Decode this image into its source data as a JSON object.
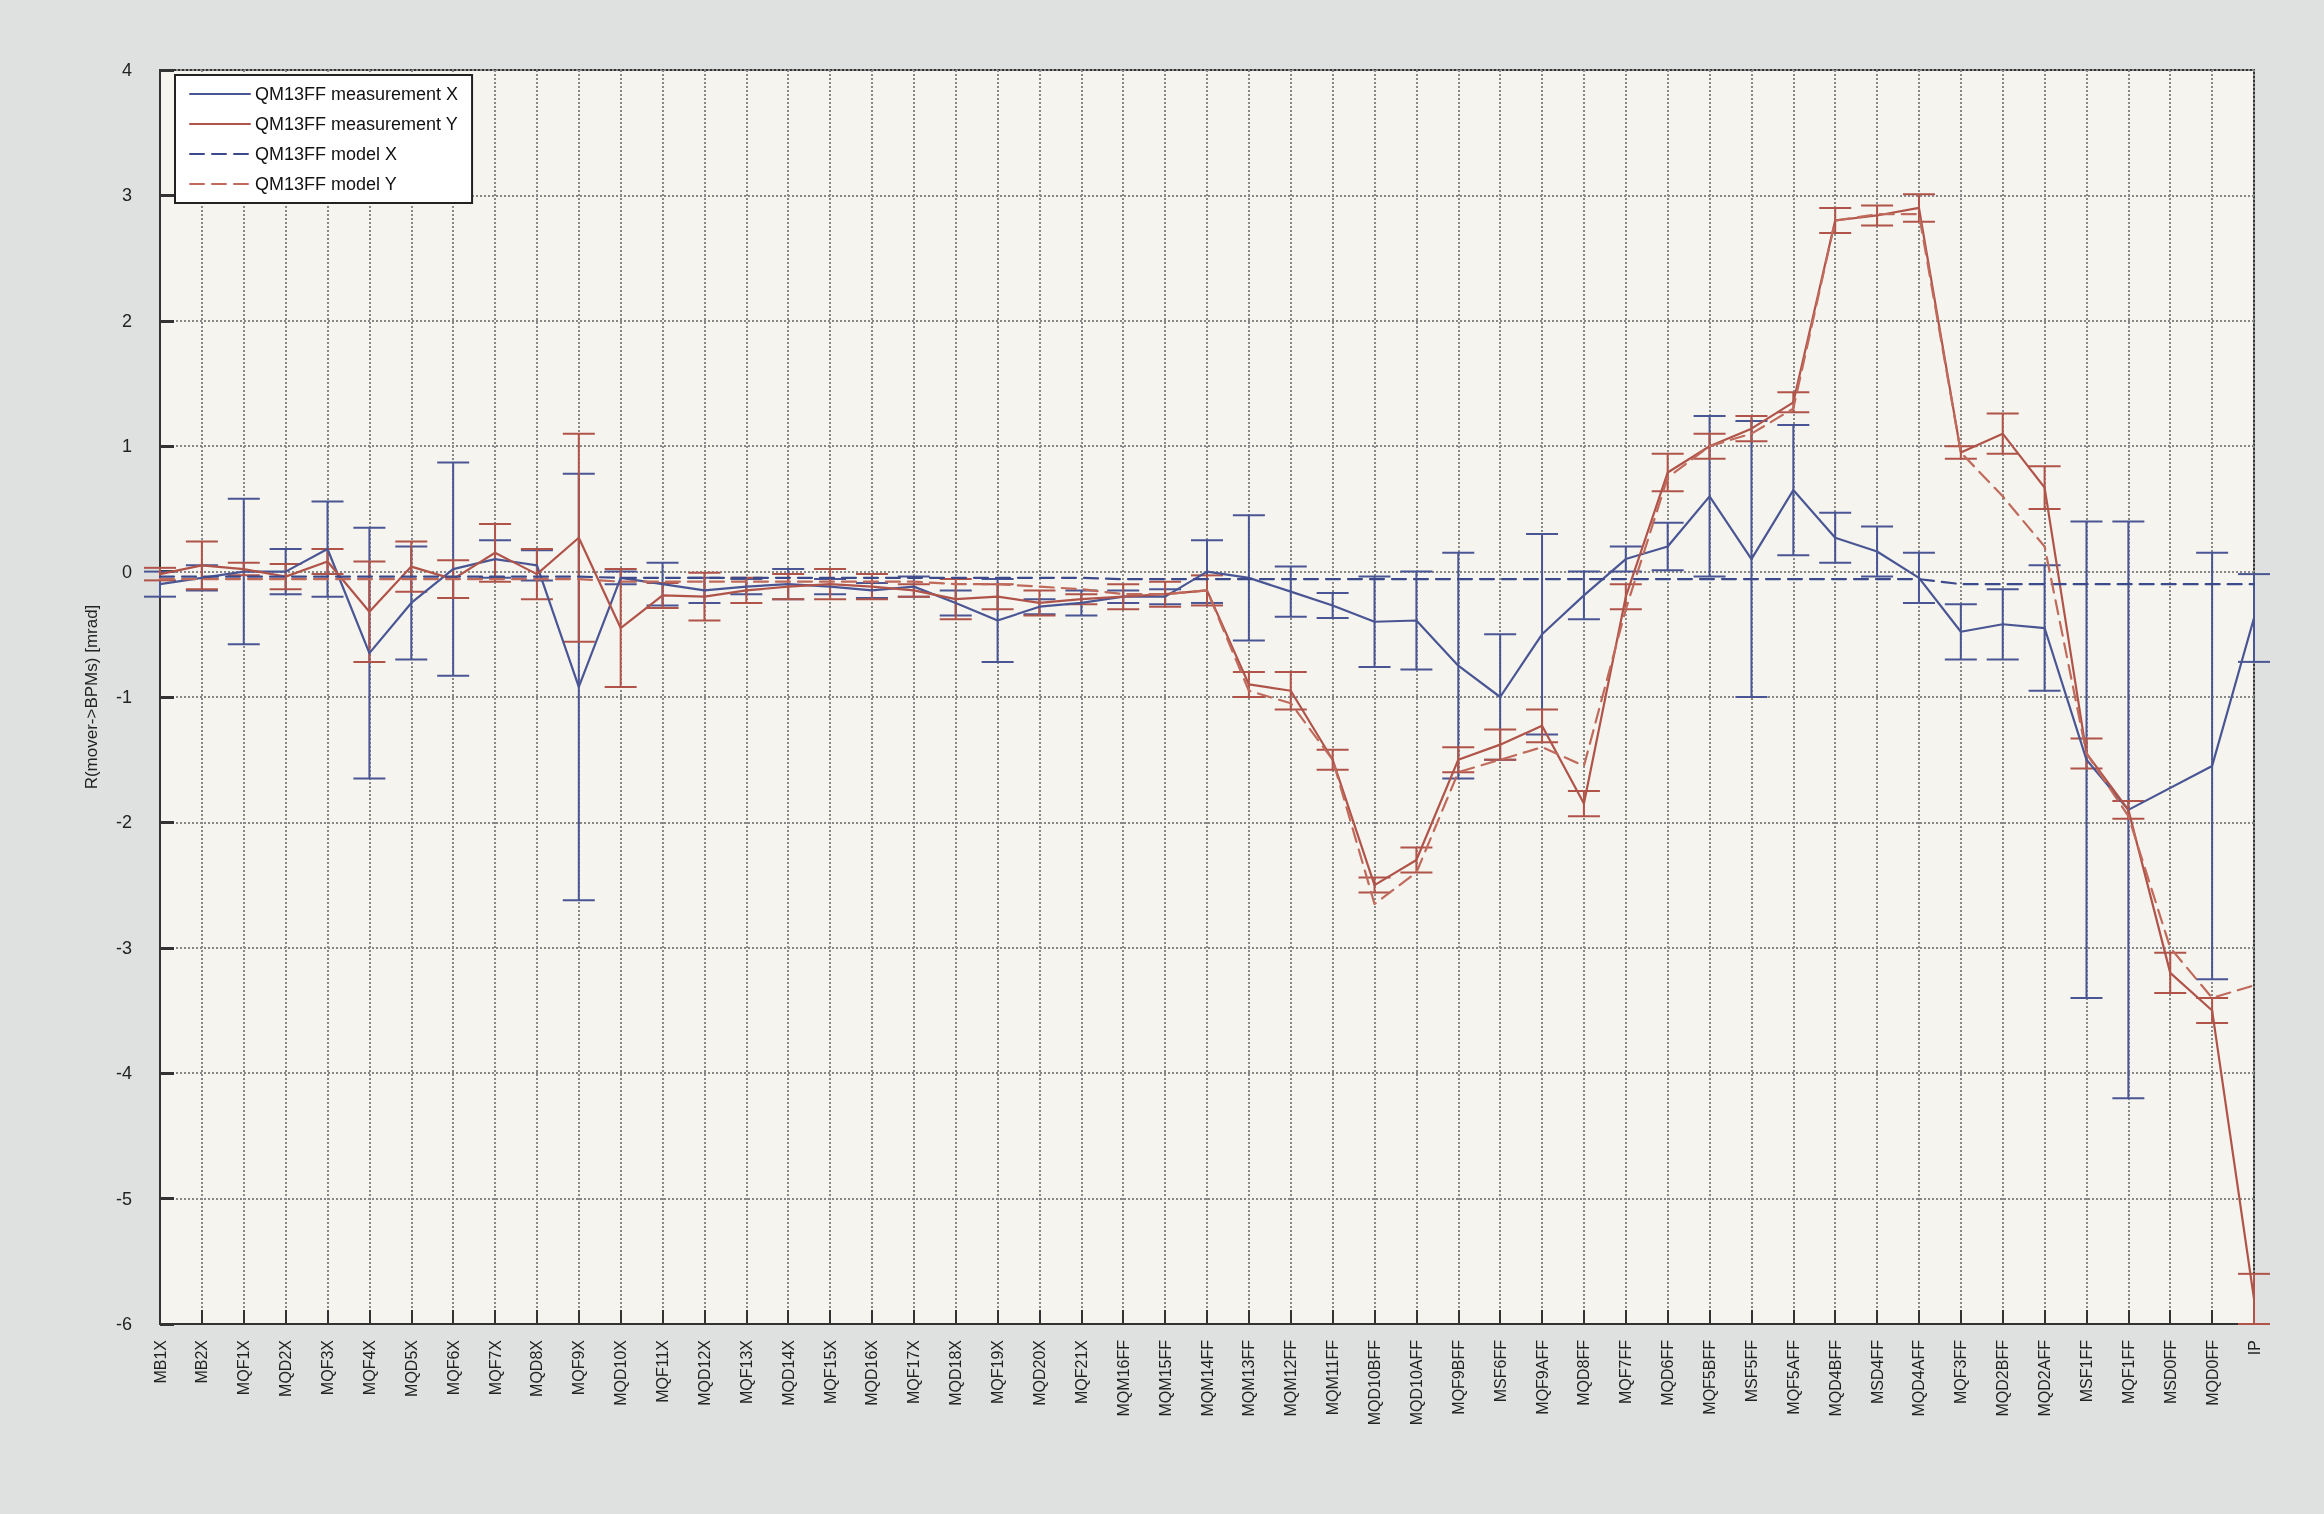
{
  "chart_data": {
    "type": "line",
    "ylabel": "R(mover->BPMs) [mrad]",
    "categories": [
      "MB1X",
      "MB2X",
      "MQF1X",
      "MQD2X",
      "MQF3X",
      "MQF4X",
      "MQD5X",
      "MQF6X",
      "MQF7X",
      "MQD8X",
      "MQF9X",
      "MQD10X",
      "MQF11X",
      "MQD12X",
      "MQF13X",
      "MQD14X",
      "MQF15X",
      "MQD16X",
      "MQF17X",
      "MQD18X",
      "MQF19X",
      "MQD20X",
      "MQF21X",
      "MQM16FF",
      "MQM15FF",
      "MQM14FF",
      "MQM13FF",
      "MQM12FF",
      "MQM11FF",
      "MQD10BFF",
      "MQD10AFF",
      "MQF9BFF",
      "MSF6FF",
      "MQF9AFF",
      "MQD8FF",
      "MQF7FF",
      "MQD6FF",
      "MQF5BFF",
      "MSF5FF",
      "MQF5AFF",
      "MQD4BFF",
      "MSD4FF",
      "MQD4AFF",
      "MQF3FF",
      "MQD2BFF",
      "MQD2AFF",
      "MSF1FF",
      "MQF1FF",
      "MSD0FF",
      "MQD0FF",
      "IP"
    ],
    "series": [
      {
        "name": "QM13FF measurement X",
        "color": "#4a5694",
        "line_style": "solid",
        "values": [
          -0.1,
          -0.05,
          0,
          0,
          0.18,
          -0.65,
          -0.25,
          0.02,
          0.1,
          0.05,
          -0.92,
          -0.05,
          -0.1,
          -0.15,
          -0.12,
          -0.1,
          -0.12,
          -0.15,
          -0.12,
          -0.25,
          -0.39,
          -0.28,
          -0.25,
          -0.2,
          -0.2,
          0,
          -0.05,
          -0.16,
          -0.27,
          -0.4,
          -0.39,
          -0.75,
          -1,
          -0.5,
          -0.19,
          0.1,
          0.2,
          0.6,
          0.1,
          0.65,
          0.27,
          0.16,
          -0.05,
          -0.48,
          -0.42,
          -0.45,
          -1.5,
          -1.9,
          null,
          -1.55,
          -0.37
        ],
        "errors": [
          0.1,
          0.1,
          0.58,
          0.18,
          0.38,
          1,
          0.45,
          0.85,
          0.15,
          0.12,
          1.7,
          0.05,
          0.17,
          0.1,
          0.06,
          0.12,
          0.06,
          0.06,
          0.08,
          0.1,
          0.33,
          0.06,
          0.1,
          0.05,
          0.06,
          0.25,
          0.5,
          0.2,
          0.1,
          0.36,
          0.39,
          0.9,
          0.5,
          0.8,
          0.19,
          0.1,
          0.19,
          0.64,
          1.1,
          0.52,
          0.2,
          0.2,
          0.2,
          0.22,
          0.28,
          0.5,
          1.9,
          2.3,
          null,
          1.7,
          0.35
        ]
      },
      {
        "name": "QM13FF measurement Y",
        "color": "#b0544a",
        "line_style": "solid",
        "values": [
          -0.02,
          0.05,
          0.02,
          -0.04,
          0.08,
          -0.32,
          0.04,
          -0.06,
          0.15,
          -0.02,
          0.27,
          -0.45,
          -0.19,
          -0.2,
          -0.15,
          -0.12,
          -0.1,
          -0.12,
          -0.15,
          -0.22,
          -0.2,
          -0.25,
          -0.22,
          -0.2,
          -0.18,
          -0.15,
          -0.9,
          -0.95,
          -1.5,
          -2.5,
          -2.3,
          -1.5,
          -1.38,
          -1.23,
          -1.85,
          -0.2,
          0.79,
          1,
          1.14,
          1.35,
          2.8,
          2.84,
          2.9,
          0.95,
          1.1,
          0.67,
          -1.45,
          -1.9,
          -3.2,
          -3.5,
          -5.8
        ],
        "errors": [
          0.05,
          0.19,
          0.05,
          0.1,
          0.1,
          0.4,
          0.2,
          0.15,
          0.23,
          0.2,
          0.83,
          0.47,
          0.1,
          0.19,
          0.1,
          0.1,
          0.12,
          0.1,
          0.05,
          0.16,
          0.1,
          0.1,
          0.04,
          0.1,
          0.1,
          0.12,
          0.1,
          0.15,
          0.08,
          0.06,
          0.1,
          0.1,
          0.12,
          0.13,
          0.1,
          0.1,
          0.15,
          0.1,
          0.1,
          0.08,
          0.1,
          0.08,
          0.11,
          0.05,
          0.16,
          0.17,
          0.12,
          0.07,
          0.16,
          0.1,
          0.2
        ]
      },
      {
        "name": "QM13FF model X",
        "color": "#3c4a8c",
        "line_style": "dashed",
        "values": [
          -0.04,
          -0.04,
          -0.04,
          -0.04,
          -0.04,
          -0.04,
          -0.04,
          -0.04,
          -0.04,
          -0.04,
          -0.04,
          -0.05,
          -0.05,
          -0.05,
          -0.05,
          -0.05,
          -0.05,
          -0.05,
          -0.05,
          -0.05,
          -0.05,
          -0.05,
          -0.05,
          -0.06,
          -0.06,
          -0.06,
          -0.06,
          -0.06,
          -0.06,
          -0.06,
          -0.06,
          -0.06,
          -0.06,
          -0.06,
          -0.06,
          -0.06,
          -0.06,
          -0.06,
          -0.06,
          -0.06,
          -0.06,
          -0.06,
          -0.06,
          -0.1,
          -0.1,
          -0.1,
          -0.1,
          -0.1,
          -0.1,
          -0.1,
          -0.1
        ]
      },
      {
        "name": "QM13FF model Y",
        "color": "#c06a5c",
        "line_style": "dashed",
        "values": [
          -0.06,
          -0.06,
          -0.06,
          -0.06,
          -0.06,
          -0.06,
          -0.06,
          -0.06,
          -0.06,
          -0.06,
          -0.06,
          -0.08,
          -0.08,
          -0.08,
          -0.08,
          -0.08,
          -0.08,
          -0.08,
          -0.08,
          -0.1,
          -0.1,
          -0.12,
          -0.14,
          -0.18,
          -0.18,
          -0.15,
          -0.95,
          -1.05,
          -1.5,
          -2.65,
          -2.4,
          -1.6,
          -1.5,
          -1.4,
          -1.55,
          -0.3,
          0.75,
          1,
          1.1,
          1.3,
          2.8,
          2.85,
          2.85,
          0.95,
          0.6,
          0.2,
          -1.45,
          -1.95,
          -3,
          -3.4,
          -3.3
        ]
      }
    ],
    "ylim": [
      -6,
      4
    ],
    "yticks": [
      -6,
      -5,
      -4,
      -3,
      -2,
      -1,
      0,
      1,
      2,
      3,
      4
    ],
    "grid": true,
    "legend": "top left",
    "marker": "none"
  }
}
